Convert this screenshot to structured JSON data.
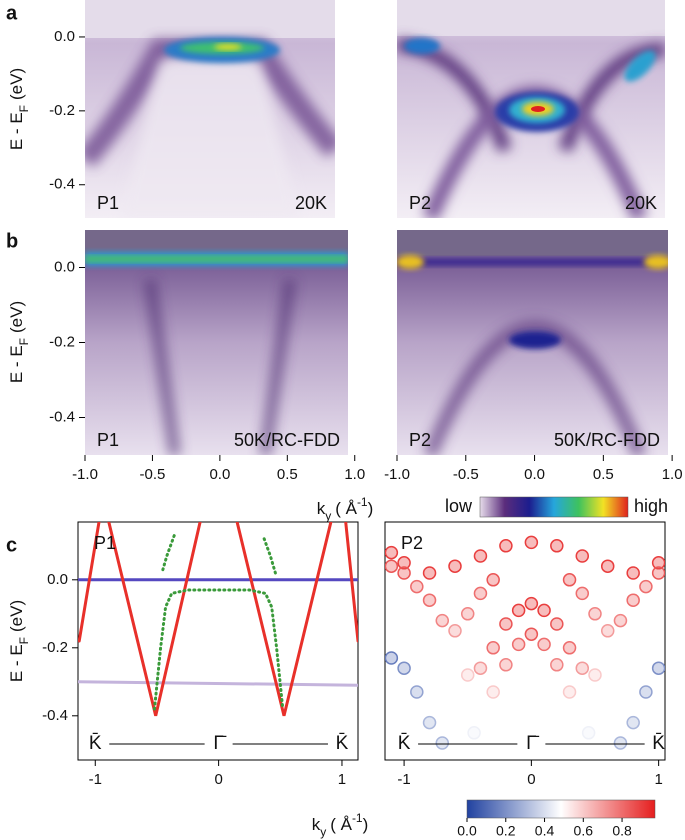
{
  "chart_data": [
    {
      "type": "image",
      "panel": "a",
      "labels": [
        "P1",
        "20K"
      ],
      "xlim": [
        -1.0,
        0.95
      ],
      "ylim": [
        -0.49,
        0.1
      ],
      "yticks": [
        {
          "value": 0,
          "label": "0.0"
        },
        -0.2,
        -0.4
      ],
      "ylabel": [
        "E - E",
        "F",
        "(eV)"
      ]
    },
    {
      "type": "image",
      "labels": [
        "P2",
        "20K"
      ],
      "xlim": [
        -1.0,
        0.97
      ],
      "ylim": [
        -0.49,
        0.1
      ]
    },
    {
      "type": "image",
      "panel": "b",
      "labels": [
        "P1",
        "50K/RC-FDD"
      ],
      "xlim": [
        -1.0,
        0.95
      ],
      "ylim": [
        -0.5,
        0.1
      ],
      "yticks": [
        {
          "value": 0,
          "label": "0.0"
        },
        -0.2,
        -0.4
      ],
      "xticks": [
        {
          "value": -1,
          "label": "-1.0"
        },
        -0.5,
        {
          "value": 0,
          "label": "0.0"
        },
        0.5,
        {
          "value": 1,
          "label": "1.0"
        }
      ],
      "ylabel": [
        "E - E",
        "F",
        "(eV)"
      ]
    },
    {
      "type": "image",
      "labels": [
        "P2",
        "50K/RC-FDD"
      ],
      "xlim": [
        -1.0,
        0.97
      ],
      "ylim": [
        -0.5,
        0.1
      ],
      "xticks": [
        {
          "value": -1,
          "label": "-1.0"
        },
        -0.5,
        {
          "value": 0,
          "label": "0.0"
        },
        0.5,
        {
          "value": 1,
          "label": "1.0"
        }
      ],
      "xlabel": [
        "k",
        "y",
        "( Å",
        "-1",
        ")"
      ],
      "colorbar": {
        "labels": [
          "low",
          "high"
        ],
        "colors": [
          "#e6dcea",
          "#5b2d7c",
          "#1c1d8e",
          "#26a6dc",
          "#3ec25e",
          "#f2e224",
          "#e0231e"
        ]
      }
    },
    {
      "type": "line",
      "panel": "c",
      "labels": [
        "P1"
      ],
      "xlim": [
        -1.14,
        1.13
      ],
      "ylim": [
        -0.53,
        0.17
      ],
      "xticks": [
        -1,
        0,
        1
      ],
      "yticks": [
        {
          "value": 0,
          "label": "0.0"
        },
        -0.2,
        -0.4
      ],
      "ylabel": [
        "E - E",
        "F",
        "(eV)"
      ],
      "symmetry_points": [
        "K̄",
        "Γ̄",
        "K̄"
      ],
      "series": [
        {
          "color": "#c4b4dc",
          "x": [
            -1.14,
            1.13
          ],
          "y": [
            -0.3,
            -0.31
          ]
        },
        {
          "color": "#5548c0",
          "x": [
            -1.14,
            1.13
          ],
          "y": [
            0,
            0
          ]
        },
        {
          "color": "#e8302a",
          "x": [
            -1.13,
            -0.97,
            -0.93,
            -0.89,
            -0.51,
            -0.15,
            -0.1,
            0.15,
            0.53,
            0.91,
            0.96,
            1.03,
            1.13
          ],
          "y": [
            -0.18,
            0.17,
            null,
            0.17,
            -0.4,
            0.17,
            null,
            0.17,
            -0.4,
            0.17,
            null,
            0.17,
            -0.18
          ]
        },
        {
          "color": "#3a9a3a",
          "linestyle": "dotted",
          "x": [
            -0.36,
            -0.42,
            -0.46,
            -0.49,
            -0.52,
            -0.47,
            -0.43,
            -0.38,
            -0.25,
            0,
            0.25,
            0.38,
            0.43,
            0.47,
            0.52,
            0.49,
            0.46,
            0.42,
            0.36
          ],
          "y": [
            0.13,
            0.07,
            0.02,
            null,
            -0.38,
            -0.2,
            -0.08,
            -0.04,
            -0.03,
            -0.03,
            -0.03,
            -0.04,
            -0.08,
            -0.2,
            -0.38,
            null,
            0.02,
            0.07,
            0.13
          ]
        }
      ]
    },
    {
      "type": "scatter",
      "labels": [
        "P2"
      ],
      "xlim": [
        -1.15,
        1.05
      ],
      "ylim": [
        -0.53,
        0.17
      ],
      "xticks": [
        -1,
        0,
        1
      ],
      "xlabel": [
        "k",
        "y",
        "( Å",
        "-1",
        ")"
      ],
      "symmetry_points": [
        "K̄",
        "Γ̄",
        "K̄"
      ],
      "series": [
        {
          "x": [
            -1.1,
            -1.0,
            -0.8,
            -0.6,
            -0.4,
            -0.2,
            0,
            0.2,
            0.4,
            0.6,
            0.8,
            1.0
          ],
          "y": [
            0.08,
            0.05,
            0.02,
            0.04,
            0.07,
            0.1,
            0.11,
            0.1,
            0.07,
            0.04,
            0.02,
            0.05
          ],
          "weights": [
            0.9,
            0.9,
            0.9,
            0.9,
            0.9,
            0.9,
            0.9,
            0.9,
            0.9,
            0.9,
            0.9,
            0.9
          ]
        },
        {
          "x": [
            -1.1,
            -1.0,
            -0.9,
            -0.8,
            -0.7,
            -0.6,
            -0.5,
            -0.4,
            -0.3,
            0,
            0.3,
            0.4,
            0.5,
            0.6,
            0.7,
            0.8,
            0.9,
            1.0
          ],
          "y": [
            0.04,
            0.02,
            -0.02,
            -0.06,
            -0.12,
            -0.15,
            -0.1,
            -0.04,
            0.0,
            null,
            0.0,
            -0.04,
            -0.1,
            -0.15,
            -0.12,
            -0.06,
            -0.02,
            0.02
          ],
          "weights": [
            0.85,
            0.85,
            0.8,
            0.8,
            0.75,
            0.7,
            0.75,
            0.8,
            0.85,
            null,
            0.85,
            0.8,
            0.75,
            0.7,
            0.75,
            0.8,
            0.8,
            0.85
          ]
        },
        {
          "x": [
            -0.5,
            -0.4,
            -0.3,
            -0.2,
            -0.1,
            0,
            0.1,
            0.2,
            0.3,
            0.4,
            0.5
          ],
          "y": [
            -0.28,
            -0.26,
            -0.2,
            -0.13,
            -0.09,
            -0.07,
            -0.09,
            -0.13,
            -0.2,
            -0.26,
            -0.28
          ],
          "weights": [
            0.6,
            0.7,
            0.8,
            0.85,
            0.9,
            0.9,
            0.9,
            0.85,
            0.8,
            0.7,
            0.6
          ]
        },
        {
          "x": [
            -0.45,
            -0.3,
            -0.2,
            -0.1,
            0,
            0.1,
            0.2,
            0.3,
            0.45
          ],
          "y": [
            -0.45,
            -0.33,
            -0.25,
            -0.19,
            -0.16,
            -0.19,
            -0.25,
            -0.33,
            -0.45
          ],
          "weights": [
            0.45,
            0.6,
            0.75,
            0.8,
            0.85,
            0.8,
            0.75,
            0.6,
            0.45
          ]
        },
        {
          "x": [
            -1.1,
            -1.0,
            -0.9,
            -0.8,
            -0.7
          ],
          "y": [
            -0.23,
            -0.26,
            -0.33,
            -0.42,
            -0.48
          ],
          "weights": [
            0.15,
            0.2,
            0.25,
            0.3,
            0.3
          ]
        },
        {
          "x": [
            0.7,
            0.8,
            0.9,
            1.0
          ],
          "y": [
            -0.48,
            -0.42,
            -0.33,
            -0.26
          ],
          "weights": [
            0.3,
            0.3,
            0.25,
            0.2
          ]
        }
      ],
      "colorbar": {
        "lim": [
          0,
          0.97
        ],
        "ticks": [
          {
            "value": 0,
            "label": "0.0"
          },
          0.2,
          0.4,
          0.6,
          0.8
        ],
        "colors": [
          "#2142a0",
          "#ffffff",
          "#e51e1e"
        ]
      }
    }
  ]
}
